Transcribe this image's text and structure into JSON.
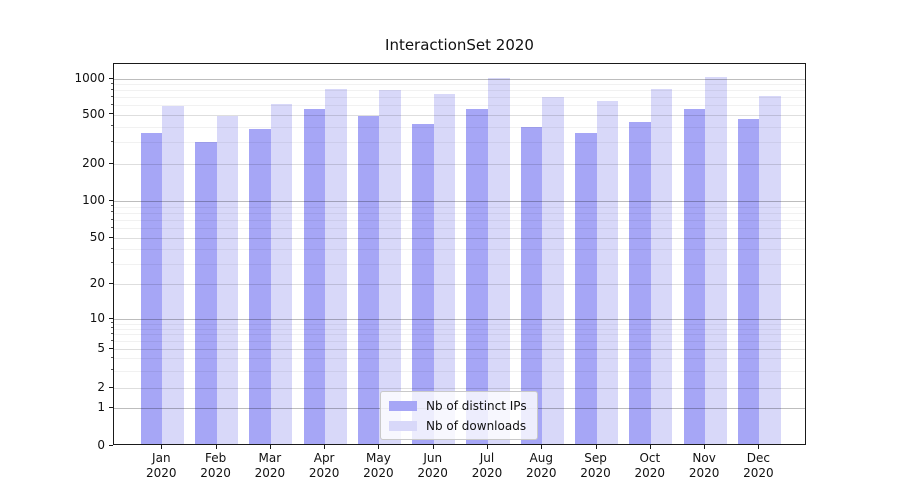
{
  "chart_data": {
    "type": "bar",
    "title": "InteractionSet 2020",
    "year_label": "2020",
    "categories": [
      "Jan",
      "Feb",
      "Mar",
      "Apr",
      "May",
      "Jun",
      "Jul",
      "Aug",
      "Sep",
      "Oct",
      "Nov",
      "Dec"
    ],
    "series": [
      {
        "name": "Nb of distinct IPs",
        "color": "#a6a6f6",
        "values": [
          345,
          290,
          370,
          540,
          470,
          405,
          540,
          385,
          345,
          420,
          540,
          440
        ]
      },
      {
        "name": "Nb of downloads",
        "color": "#d8d8f9",
        "values": [
          565,
          470,
          595,
          795,
          770,
          720,
          975,
          675,
          625,
          795,
          1000,
          695
        ]
      }
    ],
    "xlabel": "",
    "ylabel": "",
    "yscale": "symlog",
    "y_ticks": [
      0,
      1,
      2,
      5,
      10,
      20,
      50,
      100,
      200,
      500,
      1000
    ],
    "y_decade_ticks": [
      1,
      10,
      100,
      1000
    ],
    "y_minor_gridlines": [
      3,
      4,
      6,
      7,
      8,
      9,
      30,
      40,
      60,
      70,
      80,
      90,
      300,
      400,
      600,
      700,
      800,
      900
    ],
    "ylim": [
      0,
      1300
    ],
    "grid": true,
    "grid_over_bars": true,
    "legend_position": "lower center"
  }
}
